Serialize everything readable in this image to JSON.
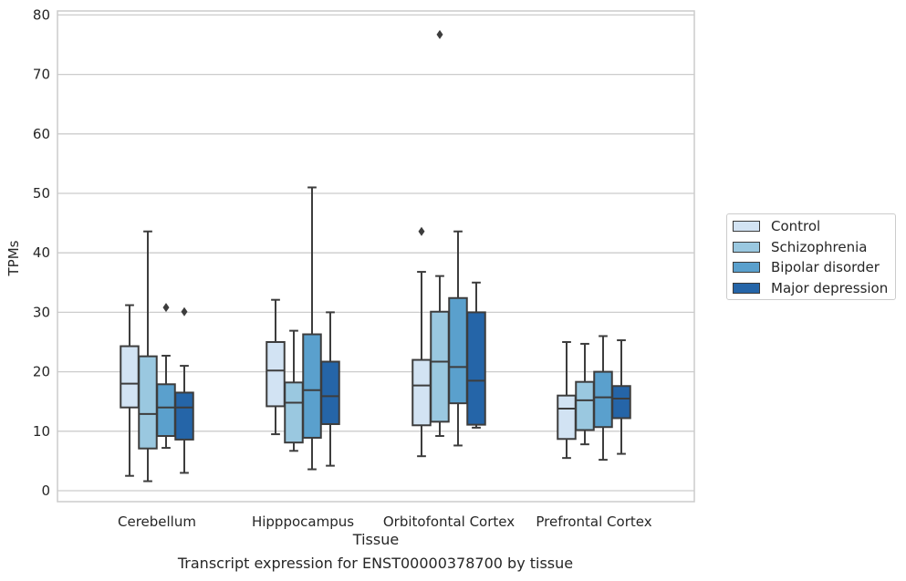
{
  "chart_data": {
    "type": "box",
    "xlabel": "Tissue",
    "ylabel": "TPMs",
    "ylim": [
      -2,
      81
    ],
    "yticks": [
      0,
      10,
      20,
      30,
      40,
      50,
      60,
      70,
      80
    ],
    "grid": true,
    "legend_position": "right",
    "categories": [
      "Cerebellum",
      "Hipppocampus",
      "Orbitofontal Cortex",
      "Prefrontal Cortex"
    ],
    "series": [
      {
        "name": "Control",
        "color": "#d2e3f3",
        "boxes": [
          {
            "whislo": 2.5,
            "q1": 14.0,
            "med": 18.0,
            "q3": 24.3,
            "whishi": 31.2,
            "fliers": []
          },
          {
            "whislo": 9.5,
            "q1": 14.2,
            "med": 20.2,
            "q3": 25.0,
            "whishi": 32.1,
            "fliers": []
          },
          {
            "whislo": 5.8,
            "q1": 11.0,
            "med": 17.7,
            "q3": 22.0,
            "whishi": 36.8,
            "fliers": [
              43.6
            ]
          },
          {
            "whislo": 5.5,
            "q1": 8.7,
            "med": 13.8,
            "q3": 16.0,
            "whishi": 25.0,
            "fliers": []
          }
        ]
      },
      {
        "name": "Schizophrenia",
        "color": "#9ac8e0",
        "boxes": [
          {
            "whislo": 1.6,
            "q1": 7.1,
            "med": 12.9,
            "q3": 22.6,
            "whishi": 43.6,
            "fliers": []
          },
          {
            "whislo": 6.7,
            "q1": 8.1,
            "med": 14.8,
            "q3": 18.2,
            "whishi": 26.9,
            "fliers": []
          },
          {
            "whislo": 9.2,
            "q1": 11.6,
            "med": 21.7,
            "q3": 30.1,
            "whishi": 36.1,
            "fliers": [
              76.7
            ]
          },
          {
            "whislo": 7.8,
            "q1": 10.2,
            "med": 15.2,
            "q3": 18.3,
            "whishi": 24.7,
            "fliers": []
          }
        ]
      },
      {
        "name": "Bipolar disorder",
        "color": "#5aa0cd",
        "boxes": [
          {
            "whislo": 7.2,
            "q1": 9.2,
            "med": 14.0,
            "q3": 17.9,
            "whishi": 22.7,
            "fliers": [
              30.8
            ]
          },
          {
            "whislo": 3.6,
            "q1": 8.9,
            "med": 16.9,
            "q3": 26.3,
            "whishi": 51.0,
            "fliers": []
          },
          {
            "whislo": 7.6,
            "q1": 14.7,
            "med": 20.8,
            "q3": 32.4,
            "whishi": 43.6,
            "fliers": []
          },
          {
            "whislo": 5.2,
            "q1": 10.7,
            "med": 15.7,
            "q3": 20.0,
            "whishi": 26.0,
            "fliers": []
          }
        ]
      },
      {
        "name": "Major depression",
        "color": "#2565a8",
        "boxes": [
          {
            "whislo": 3.0,
            "q1": 8.6,
            "med": 14.0,
            "q3": 16.5,
            "whishi": 21.0,
            "fliers": [
              30.1
            ]
          },
          {
            "whislo": 4.2,
            "q1": 11.2,
            "med": 15.9,
            "q3": 21.7,
            "whishi": 30.0,
            "fliers": []
          },
          {
            "whislo": 10.6,
            "q1": 11.1,
            "med": 18.5,
            "q3": 30.0,
            "whishi": 35.0,
            "fliers": []
          },
          {
            "whislo": 6.2,
            "q1": 12.2,
            "med": 15.5,
            "q3": 17.6,
            "whishi": 25.3,
            "fliers": []
          }
        ]
      }
    ]
  },
  "caption": "Transcript expression for ENST00000378700 by tissue"
}
